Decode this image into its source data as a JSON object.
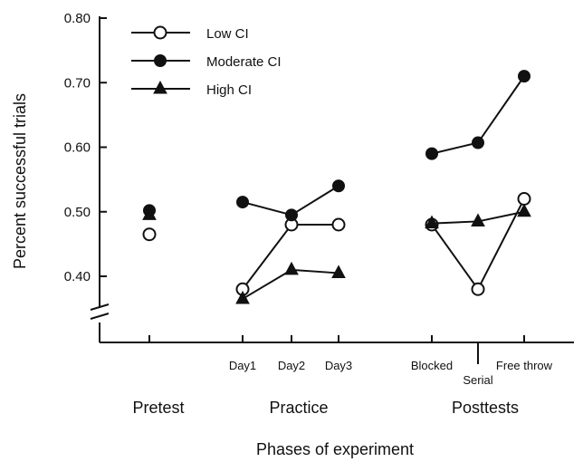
{
  "chart_data": {
    "type": "line",
    "title": "",
    "ylabel": "Percent successful trials",
    "xlabel": "Phases of experiment",
    "ylim": [
      0.35,
      0.8
    ],
    "yticks": [
      "0.80",
      "0.70",
      "0.60",
      "0.50",
      "0.40"
    ],
    "ytick_values": [
      0.8,
      0.7,
      0.6,
      0.5,
      0.4
    ],
    "axis_break": true,
    "categories": [
      "Pretest",
      "Day1",
      "Day2",
      "Day3",
      "Blocked",
      "Serial",
      "Free throw"
    ],
    "category_labels": [
      "",
      "Day1",
      "Day2",
      "Day3",
      "Blocked",
      "Serial",
      "Free throw"
    ],
    "groups": [
      {
        "label": "Pretest"
      },
      {
        "label": "Practice"
      },
      {
        "label": "Posttests"
      }
    ],
    "segments": [
      [
        0
      ],
      [
        1,
        2,
        3
      ],
      [
        4,
        5,
        6
      ]
    ],
    "legend_position": "top-left",
    "series": [
      {
        "name": "Low CI",
        "marker": "circle-open",
        "values": [
          0.465,
          0.38,
          0.48,
          0.48,
          0.48,
          0.38,
          0.52
        ]
      },
      {
        "name": "Moderate CI",
        "marker": "circle-filled",
        "values": [
          0.502,
          0.515,
          0.495,
          0.54,
          0.59,
          0.607,
          0.71
        ]
      },
      {
        "name": "High CI",
        "marker": "triangle-filled",
        "values": [
          0.495,
          0.365,
          0.41,
          0.405,
          0.482,
          0.485,
          0.5
        ]
      }
    ]
  }
}
